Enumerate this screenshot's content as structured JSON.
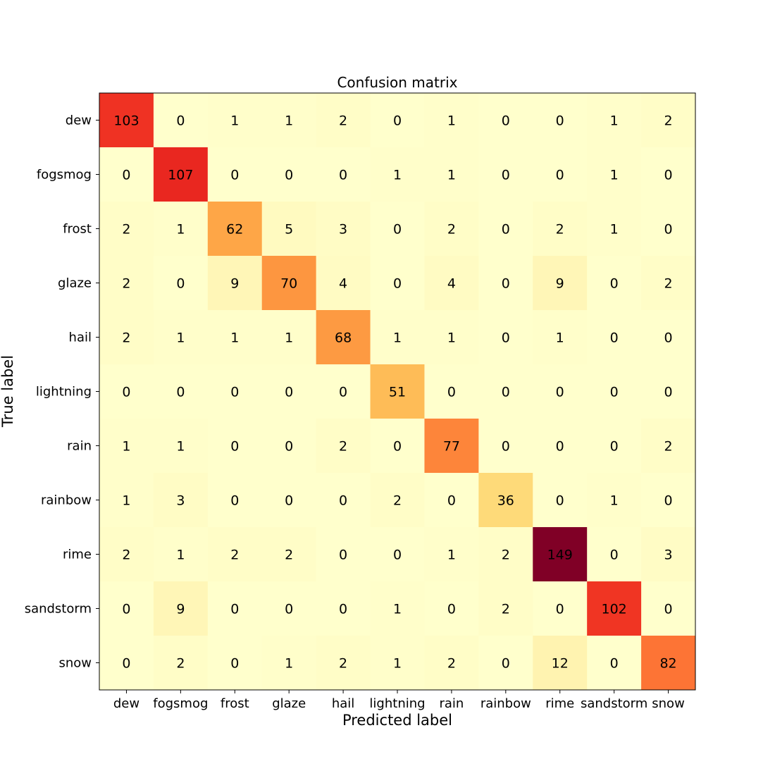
{
  "chart_data": {
    "type": "heatmap",
    "title": "Confusion matrix",
    "xlabel": "Predicted label",
    "ylabel": "True label",
    "colormap": "YlOrRd",
    "value_range": [
      0,
      149
    ],
    "text_color": "#000000",
    "x_categories": [
      "dew",
      "fogsmog",
      "frost",
      "glaze",
      "hail",
      "lightning",
      "rain",
      "rainbow",
      "rime",
      "sandstorm",
      "snow"
    ],
    "y_categories": [
      "dew",
      "fogsmog",
      "frost",
      "glaze",
      "hail",
      "lightning",
      "rain",
      "rainbow",
      "rime",
      "sandstorm",
      "snow"
    ],
    "values": [
      [
        103,
        0,
        1,
        1,
        2,
        0,
        1,
        0,
        0,
        1,
        2
      ],
      [
        0,
        107,
        0,
        0,
        0,
        1,
        1,
        0,
        0,
        1,
        0
      ],
      [
        2,
        1,
        62,
        5,
        3,
        0,
        2,
        0,
        2,
        1,
        0
      ],
      [
        2,
        0,
        9,
        70,
        4,
        0,
        4,
        0,
        9,
        0,
        2
      ],
      [
        2,
        1,
        1,
        1,
        68,
        1,
        1,
        0,
        1,
        0,
        0
      ],
      [
        0,
        0,
        0,
        0,
        0,
        51,
        0,
        0,
        0,
        0,
        0
      ],
      [
        1,
        1,
        0,
        0,
        2,
        0,
        77,
        0,
        0,
        0,
        2
      ],
      [
        1,
        3,
        0,
        0,
        0,
        2,
        0,
        36,
        0,
        1,
        0
      ],
      [
        2,
        1,
        2,
        2,
        0,
        0,
        1,
        2,
        149,
        0,
        3
      ],
      [
        0,
        9,
        0,
        0,
        0,
        1,
        0,
        2,
        0,
        102,
        0
      ],
      [
        0,
        2,
        0,
        1,
        2,
        1,
        2,
        0,
        12,
        0,
        82
      ]
    ]
  }
}
